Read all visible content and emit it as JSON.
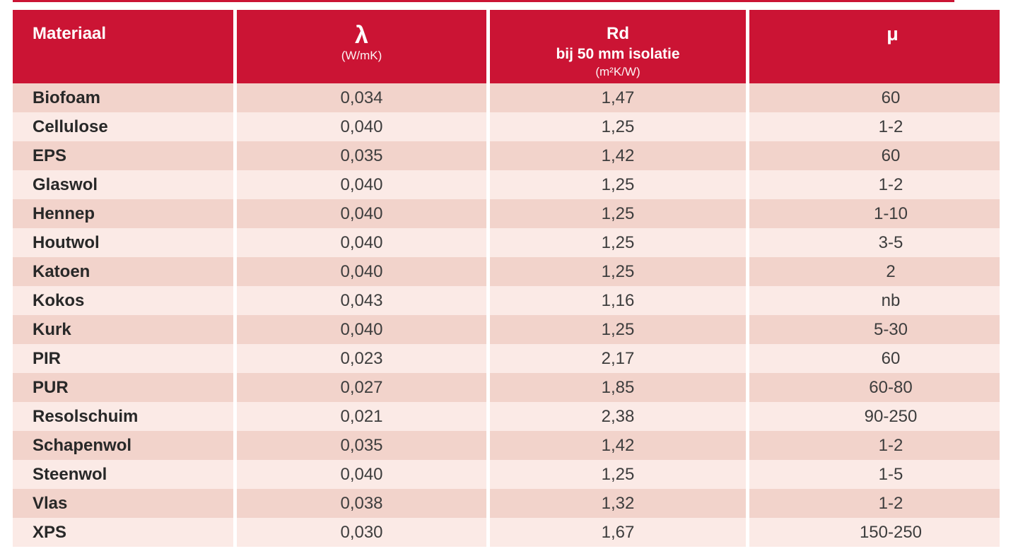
{
  "colors": {
    "header_red": "#cb1434",
    "row_dark": "#f2d3cb",
    "row_light": "#fbeae6",
    "header_text": "#ffffff",
    "material_text": "#282828",
    "value_text": "#3d3d3d",
    "background": "#ffffff"
  },
  "chart_data": {
    "type": "table",
    "header": {
      "materiaal": {
        "title": "Materiaal"
      },
      "lambda": {
        "title": "λ",
        "unit": "(W/mK)"
      },
      "rd": {
        "title": "Rd",
        "subtitle": "bij 50 mm isolatie",
        "unit": "(m²K/W)"
      },
      "mu": {
        "title": "μ"
      }
    },
    "rows": [
      {
        "materiaal": "Biofoam",
        "lambda": "0,034",
        "rd": "1,47",
        "mu": "60"
      },
      {
        "materiaal": "Cellulose",
        "lambda": "0,040",
        "rd": "1,25",
        "mu": "1-2"
      },
      {
        "materiaal": "EPS",
        "lambda": "0,035",
        "rd": "1,42",
        "mu": "60"
      },
      {
        "materiaal": "Glaswol",
        "lambda": "0,040",
        "rd": "1,25",
        "mu": "1-2"
      },
      {
        "materiaal": "Hennep",
        "lambda": "0,040",
        "rd": "1,25",
        "mu": "1-10"
      },
      {
        "materiaal": "Houtwol",
        "lambda": "0,040",
        "rd": "1,25",
        "mu": "3-5"
      },
      {
        "materiaal": "Katoen",
        "lambda": "0,040",
        "rd": "1,25",
        "mu": "2"
      },
      {
        "materiaal": "Kokos",
        "lambda": "0,043",
        "rd": "1,16",
        "mu": "nb"
      },
      {
        "materiaal": "Kurk",
        "lambda": "0,040",
        "rd": "1,25",
        "mu": "5-30"
      },
      {
        "materiaal": "PIR",
        "lambda": "0,023",
        "rd": "2,17",
        "mu": "60"
      },
      {
        "materiaal": "PUR",
        "lambda": "0,027",
        "rd": "1,85",
        "mu": "60-80"
      },
      {
        "materiaal": "Resolschuim",
        "lambda": "0,021",
        "rd": "2,38",
        "mu": "90-250"
      },
      {
        "materiaal": "Schapenwol",
        "lambda": "0,035",
        "rd": "1,42",
        "mu": "1-2"
      },
      {
        "materiaal": "Steenwol",
        "lambda": "0,040",
        "rd": "1,25",
        "mu": "1-5"
      },
      {
        "materiaal": "Vlas",
        "lambda": "0,038",
        "rd": "1,32",
        "mu": "1-2"
      },
      {
        "materiaal": "XPS",
        "lambda": "0,030",
        "rd": "1,67",
        "mu": "150-250"
      }
    ]
  }
}
